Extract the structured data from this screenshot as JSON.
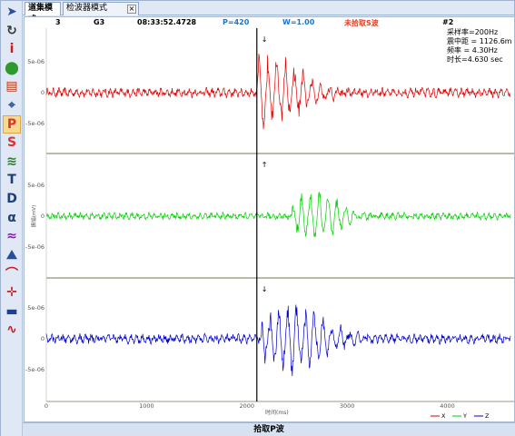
{
  "tabs": {
    "tab1": "道集模式",
    "tab2": "检波器模式",
    "close": "×"
  },
  "toolbar": [
    {
      "name": "select-arrow-icon",
      "glyph": "➤",
      "color": "#2a4f9a"
    },
    {
      "name": "refresh-icon",
      "glyph": "↻",
      "color": "#333"
    },
    {
      "name": "info-icon",
      "glyph": "i",
      "color": "#cc1a1a"
    },
    {
      "name": "location-pin-icon",
      "glyph": "⬤",
      "color": "#2e9a2e"
    },
    {
      "name": "save-icon",
      "glyph": "▤",
      "color": "#b03a1a"
    },
    {
      "name": "pick-tool-icon",
      "glyph": "⌖",
      "color": "#2a4f9a"
    },
    {
      "name": "p-wave-icon",
      "glyph": "P",
      "color": "#d33"
    },
    {
      "name": "s-wave-icon",
      "glyph": "S",
      "color": "#d33"
    },
    {
      "name": "wave-filter-icon",
      "glyph": "≋",
      "color": "#2a7a2a"
    },
    {
      "name": "text-icon",
      "glyph": "T",
      "color": "#1e3f75"
    },
    {
      "name": "d-tool-icon",
      "glyph": "D",
      "color": "#1e3f75"
    },
    {
      "name": "alpha-icon",
      "glyph": "α",
      "color": "#1e3f75"
    },
    {
      "name": "spectrum-icon",
      "glyph": "≈",
      "color": "#8a1ab0"
    },
    {
      "name": "mountain-icon",
      "glyph": "⛰",
      "color": "#2a4f9a"
    },
    {
      "name": "curve-icon",
      "glyph": "⌒",
      "color": "#c02020"
    },
    {
      "name": "crosshair-icon",
      "glyph": "✛",
      "color": "#c02020"
    },
    {
      "name": "layers-icon",
      "glyph": "▬",
      "color": "#1a3fa0"
    },
    {
      "name": "chart-icon",
      "glyph": "∿",
      "color": "#c02020"
    }
  ],
  "header": {
    "channel": "3",
    "station": "G3",
    "time": "08:33:52.4728",
    "p_pick": "P=420",
    "weight": "W=1.00",
    "s_status": "未拾取S波",
    "event": "#2"
  },
  "info": {
    "sample_rate": "采样率=200Hz",
    "distance": "震中距 = 1126.6m",
    "frequency": "频率 = 4.30Hz",
    "duration": "时长=4.630 sec"
  },
  "footer": {
    "status": "拾取P波"
  },
  "chart_data": {
    "type": "line",
    "xlabel": "时间(ms)",
    "ylabel": "振幅(mV)",
    "x_ticks": [
      "0",
      "1000",
      "2000",
      "3000",
      "4000"
    ],
    "xlim": [
      0,
      4630
    ],
    "y_ticks": [
      "5e-06",
      "0",
      "-5e-06"
    ],
    "pick_time_ms": 2100,
    "pick_marks": [
      "↓",
      "↑",
      "↓"
    ],
    "series": [
      {
        "name": "X",
        "color": "#e00000",
        "onset_ms": 2100,
        "peak_ms": 2150,
        "noise": 8e-07,
        "peak_amp": 6.5e-06,
        "decay_ms": 500
      },
      {
        "name": "Y",
        "color": "#00d000",
        "onset_ms": 2450,
        "peak_ms": 2700,
        "noise": 6e-07,
        "peak_amp": 4.5e-06,
        "decay_ms": 300
      },
      {
        "name": "Z",
        "color": "#0000cc",
        "onset_ms": 2150,
        "peak_ms": 2450,
        "noise": 8e-07,
        "peak_amp": 6e-06,
        "decay_ms": 450
      }
    ]
  }
}
